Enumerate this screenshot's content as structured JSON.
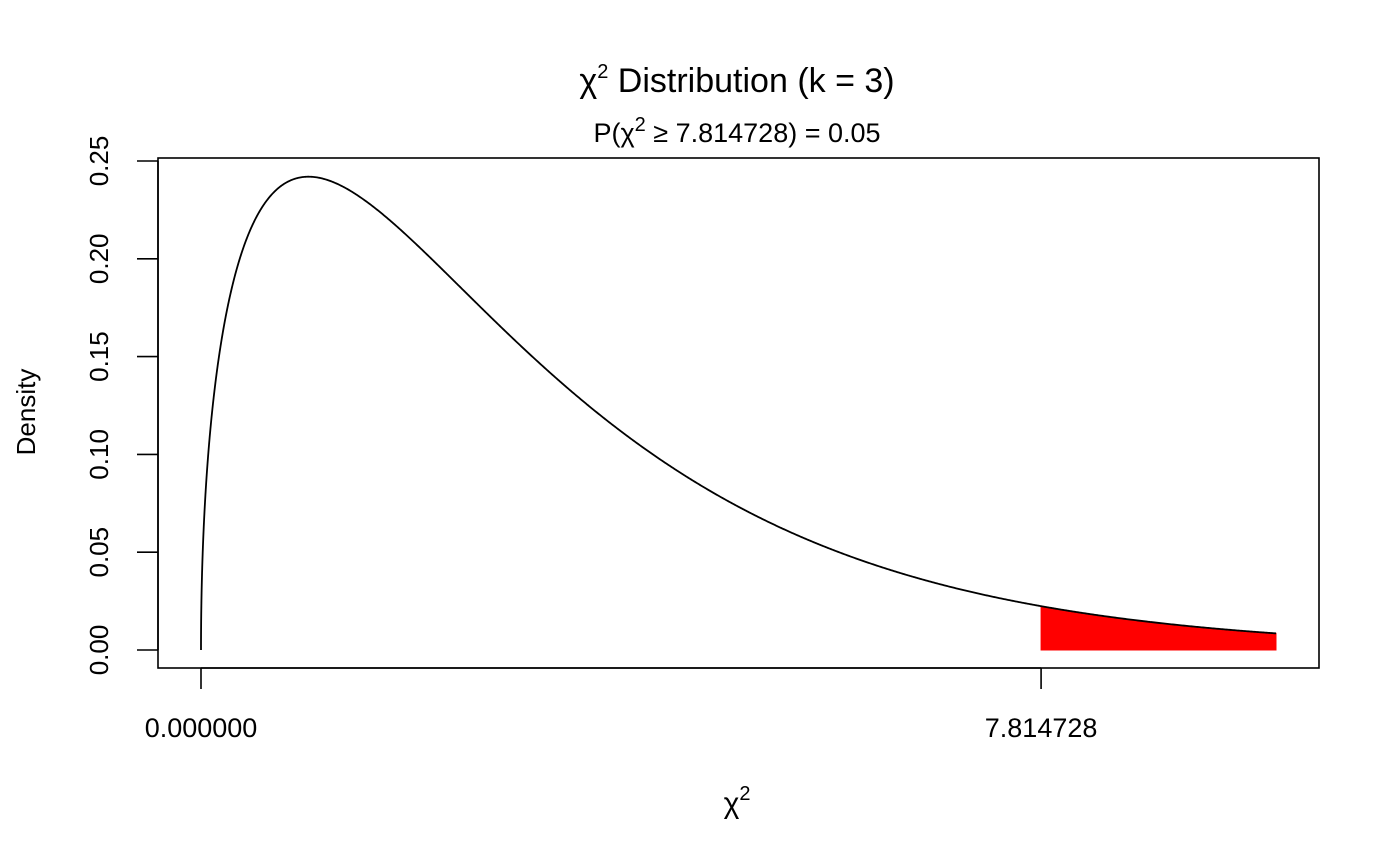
{
  "chart_data": {
    "type": "area",
    "distribution": "chi-squared",
    "degrees_of_freedom": 3,
    "title": {
      "prefix": "χ",
      "superscript": "2",
      "suffix": " Distribution (k = 3)"
    },
    "subtitle": {
      "prefix": "P(χ",
      "superscript": "2",
      "suffix": " ≥ 7.814728) = 0.05"
    },
    "xlabel": {
      "prefix": "χ",
      "superscript": "2"
    },
    "ylabel": "Density",
    "x_range": [
      0,
      10
    ],
    "ylim": [
      0,
      0.25
    ],
    "grid": false,
    "y_ticks": [
      {
        "value": 0.0,
        "label": "0.00"
      },
      {
        "value": 0.05,
        "label": "0.05"
      },
      {
        "value": 0.1,
        "label": "0.10"
      },
      {
        "value": 0.15,
        "label": "0.15"
      },
      {
        "value": 0.2,
        "label": "0.20"
      },
      {
        "value": 0.25,
        "label": "0.25"
      }
    ],
    "x_ticks": [
      {
        "value": 0,
        "label": "0.000000"
      },
      {
        "value": 7.814728,
        "label": "7.814728"
      }
    ],
    "critical_value": 7.814728,
    "tail_probability": 0.05,
    "shaded_region": {
      "from": 7.814728,
      "to": 10,
      "color": "#ff0000"
    },
    "curve_color": "#000000"
  }
}
